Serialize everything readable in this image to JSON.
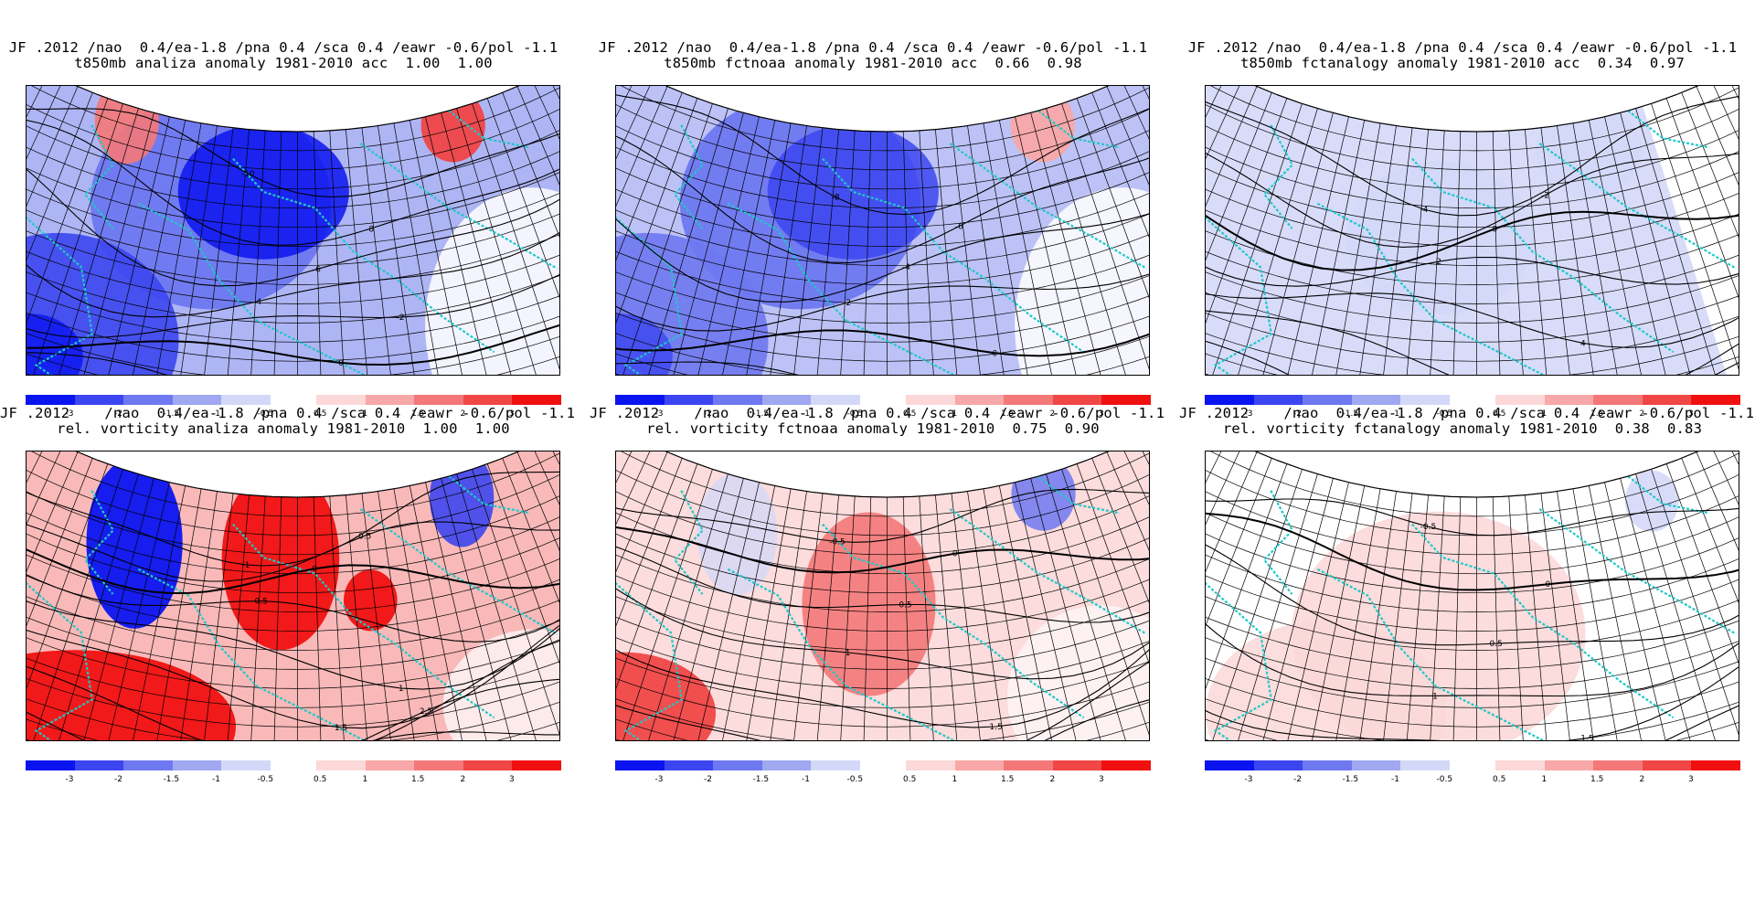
{
  "figure": {
    "colors": {
      "neg": [
        "#0a14f0",
        "#3c46f0",
        "#6e78f0",
        "#a0a8f2",
        "#d4d8f8"
      ],
      "pos": [
        "#fcd8d8",
        "#f8a8a8",
        "#f47878",
        "#f04646",
        "#f01010"
      ],
      "coast": "#1ec8c8",
      "contour": "#000000"
    },
    "colorbar": {
      "neg_labels": [
        "-3",
        "-2",
        "-1.5",
        "-1",
        "-0.5"
      ],
      "pos_labels": [
        "0.5",
        "1",
        "1.5",
        "2",
        "3"
      ]
    },
    "panels": [
      {
        "id": "p1",
        "title_line1": "JF .2012 /nao  0.4/ea-1.8 /pna 0.4 /sca 0.4 /eawr -0.6/pol -1.1",
        "title_line2": "t850mb analiza anomaly 1981-2010 acc  1.00  1.00",
        "field": "t850",
        "level": 2.2,
        "contour_labels": [
          "-10",
          "-8",
          "-6",
          "-4",
          "-2",
          "0",
          "2"
        ]
      },
      {
        "id": "p2",
        "title_line1": "JF .2012 /nao  0.4/ea-1.8 /pna 0.4 /sca 0.4 /eawr -0.6/pol -1.1",
        "title_line2": "t850mb fctnoaa anomaly 1981-2010 acc  0.66  0.98",
        "field": "t850",
        "level": 1.4,
        "contour_labels": [
          "-8",
          "-6",
          "-4",
          "-2",
          "0",
          "2"
        ]
      },
      {
        "id": "p3",
        "title_line1": "JF .2012 /nao  0.4/ea-1.8 /pna 0.4 /sca 0.4 /eawr -0.6/pol -1.1",
        "title_line2": "t850mb fctanalogy anomaly 1981-2010 acc  0.34  0.97",
        "field": "t850",
        "level": 0.45,
        "contour_labels": [
          "-4",
          "-2",
          "0",
          "2",
          "4",
          "6",
          "8"
        ]
      },
      {
        "id": "p4",
        "title_line1": "JF .2012    /nao  0.4/ea-1.8 /pna 0.4 /sca 0.4 /eawr -0.6/pol -1.1",
        "title_line2": "rel. vorticity analiza anomaly 1981-2010  1.00  1.00",
        "field": "vort",
        "level": 2.2,
        "contour_labels": [
          "-1",
          "-0.5",
          "0",
          "0.5",
          "1",
          "1.5",
          "2",
          "2.5",
          "3"
        ]
      },
      {
        "id": "p5",
        "title_line1": "JF .2012    /nao  0.4/ea-1.8 /pna 0.4 /sca 0.4 /eawr -0.6/pol -1.1",
        "title_line2": "rel. vorticity fctnoaa anomaly 1981-2010  0.75  0.90",
        "field": "vort",
        "level": 1.4,
        "contour_labels": [
          "-0.5",
          "0",
          "0.5",
          "1",
          "1.5",
          "2",
          "3"
        ]
      },
      {
        "id": "p6",
        "title_line1": "JF .2012    /nao  0.4/ea-1.8 /pna 0.4 /sca 0.4 /eawr -0.6/pol -1.1",
        "title_line2": "rel. vorticity fctanalogy anomaly 1981-2010  0.38  0.83",
        "field": "vort",
        "level": 0.45,
        "contour_labels": [
          "-0.5",
          "0",
          "0.5",
          "1",
          "1.5",
          "2"
        ]
      }
    ]
  }
}
